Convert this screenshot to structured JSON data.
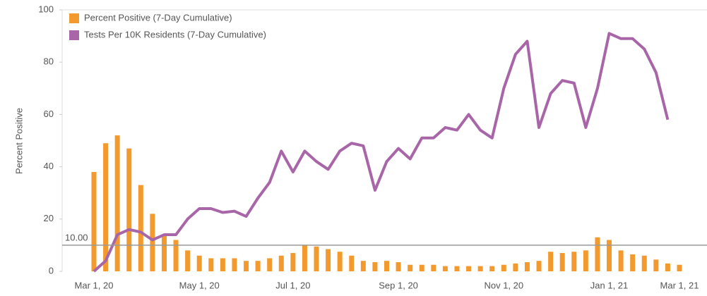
{
  "chart_data": {
    "type": "bar_line",
    "y_axis_label": "Percent Positive",
    "categories": [
      "Mar 1, 20",
      null,
      null,
      null,
      null,
      null,
      null,
      null,
      null,
      "May 1, 20",
      null,
      null,
      null,
      null,
      null,
      null,
      null,
      "Jul 1, 20",
      null,
      null,
      null,
      null,
      null,
      null,
      null,
      null,
      "Sep 1, 20",
      null,
      null,
      null,
      null,
      null,
      null,
      null,
      null,
      "Nov 1, 20",
      null,
      null,
      null,
      null,
      null,
      null,
      null,
      null,
      "Jan 1, 21",
      null,
      null,
      null,
      null,
      null,
      "Mar 1, 21"
    ],
    "series": [
      {
        "name": "Percent Positive (7-Day Cumulative)",
        "type": "bar",
        "color": "#f39a2e",
        "values": [
          38,
          49,
          52,
          47,
          33,
          22,
          14,
          12,
          8,
          6,
          5,
          5,
          5,
          4,
          4,
          5,
          6,
          7,
          10,
          9.5,
          8.5,
          7.5,
          6,
          4,
          3.5,
          4,
          3.5,
          2.5,
          2.5,
          2.5,
          2,
          2,
          2,
          2,
          2,
          2.5,
          3,
          3.5,
          4,
          7.5,
          7,
          7.5,
          8,
          13,
          12,
          8,
          6.5,
          6,
          4.5,
          3,
          2.5
        ]
      },
      {
        "name": "Tests Per 10K Residents (7-Day Cumulative)",
        "type": "line",
        "color": "#a866a8",
        "values": [
          0,
          4,
          14,
          16,
          15,
          12,
          14,
          14,
          20,
          24,
          24,
          22.5,
          23,
          21,
          28,
          34,
          46,
          38,
          46,
          42,
          39,
          46,
          49,
          48,
          31,
          42,
          47,
          43,
          51,
          51,
          55,
          54,
          60,
          54,
          51,
          70,
          83,
          88,
          55,
          68,
          73,
          72,
          55,
          70,
          91,
          89,
          89,
          85,
          76,
          58,
          null
        ]
      }
    ],
    "reference_line": {
      "value": 10,
      "label": "10.00"
    },
    "ylim": [
      0,
      100
    ],
    "yticks": [
      0,
      20,
      40,
      60,
      80,
      100
    ],
    "legend": "top-left"
  }
}
